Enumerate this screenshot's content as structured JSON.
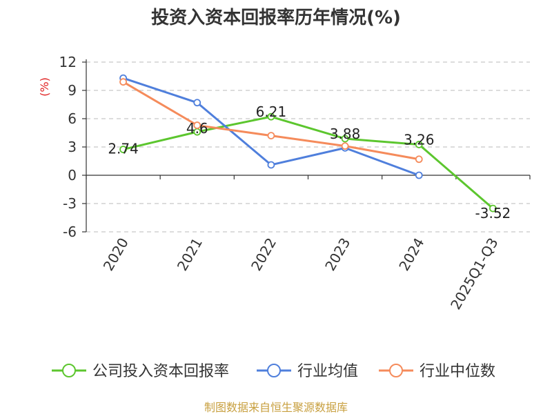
{
  "chart_data": {
    "type": "line",
    "title": "投资入资本回报率历年情况(%)",
    "ylabel": "(%)",
    "xlabel": "",
    "categories": [
      "2020",
      "2021",
      "2022",
      "2023",
      "2024",
      "2025Q1-Q3"
    ],
    "ylim": [
      -6,
      12
    ],
    "yticks": [
      12,
      9,
      6,
      3,
      0,
      -3,
      -6
    ],
    "grid": true,
    "legend_position": "bottom",
    "series": [
      {
        "name": "公司投入资本回报率",
        "color": "#5cc62e",
        "values": [
          2.74,
          4.6,
          6.21,
          3.88,
          3.26,
          -3.52
        ],
        "labels": [
          "2.74",
          "4.6",
          "6.21",
          "3.88",
          "3.26",
          "-3.52"
        ]
      },
      {
        "name": "行业均值",
        "color": "#4f7fdc",
        "values": [
          10.3,
          7.7,
          1.1,
          2.9,
          0.0,
          null
        ]
      },
      {
        "name": "行业中位数",
        "color": "#f58b5b",
        "values": [
          9.9,
          5.3,
          4.2,
          3.1,
          1.7,
          null
        ]
      }
    ],
    "source": "制图数据来自恒生聚源数据库"
  }
}
